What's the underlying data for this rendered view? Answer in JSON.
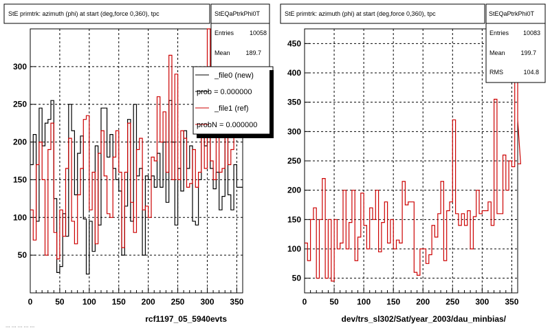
{
  "footer_text": "... ... ... ... ...",
  "chart_data": [
    {
      "type": "line",
      "title": "StE primtrk: azimuth (phi) at start (deg,force 0,360), tpc",
      "xlabel": "rcf1197_05_5940evts",
      "ylabel": "",
      "xlim": [
        0,
        360
      ],
      "ylim": [
        0,
        350
      ],
      "grid": true,
      "x_ticks": [
        0,
        50,
        100,
        150,
        200,
        250,
        300,
        350
      ],
      "y_ticks": [
        50,
        100,
        150,
        200,
        250,
        300
      ],
      "stats": {
        "name": "StEQaPtrkPhi0T",
        "entries_label": "Entries",
        "entries": "10058",
        "mean_label": "Mean",
        "mean": "189.7"
      },
      "legend": {
        "placement": "top-right",
        "entries": [
          {
            "label": "_file0 (new)",
            "color": "#000000"
          },
          {
            "label": "prob = 0.000000",
            "color": "#000000"
          },
          {
            "label": "_file1 (ref)",
            "color": "#cc0000"
          },
          {
            "label": "probN = 0.000000",
            "color": "#cc0000"
          }
        ]
      },
      "series": [
        {
          "color": "#000000",
          "bin_width": 5,
          "values": [
            170,
            210,
            95,
            245,
            195,
            225,
            230,
            255,
            125,
            27,
            35,
            105,
            75,
            250,
            215,
            130,
            185,
            208,
            98,
            25,
            95,
            55,
            195,
            90,
            245,
            245,
            180,
            210,
            165,
            150,
            135,
            50,
            115,
            230,
            95,
            250,
            155,
            165,
            50,
            155,
            150,
            155,
            140,
            185,
            140,
            200,
            120,
            255,
            200,
            90,
            165,
            135,
            215,
            165,
            195,
            95,
            90,
            150,
            275,
            195,
            250,
            165,
            138,
            160,
            110,
            128,
            215,
            130,
            110,
            170,
            140,
            140
          ]
        },
        {
          "color": "#cc0000",
          "bin_width": 5,
          "values": [
            110,
            70,
            170,
            200,
            150,
            50,
            190,
            225,
            80,
            45,
            110,
            75,
            165,
            205,
            95,
            65,
            130,
            165,
            230,
            235,
            110,
            160,
            65,
            185,
            215,
            155,
            105,
            100,
            180,
            215,
            160,
            60,
            160,
            225,
            120,
            80,
            190,
            205,
            110,
            115,
            100,
            180,
            175,
            260,
            200,
            240,
            160,
            315,
            150,
            290,
            150,
            215,
            205,
            140,
            145,
            190,
            140,
            160,
            260,
            165,
            370,
            175,
            150,
            240,
            160,
            165,
            220,
            170,
            190,
            250,
            235,
            225
          ]
        }
      ]
    },
    {
      "type": "line",
      "title": "StE primtrk: azimuth (phi) at start (deg,force 0,360), tpc",
      "xlabel": "dev/trs_sl302/Sat/year_2003/dau_minbias/",
      "ylabel": "",
      "xlim": [
        0,
        360
      ],
      "ylim": [
        25,
        475
      ],
      "grid": true,
      "x_ticks": [
        0,
        50,
        100,
        150,
        200,
        250,
        300,
        350
      ],
      "y_ticks": [
        50,
        100,
        150,
        200,
        250,
        300,
        350,
        400,
        450
      ],
      "stats": {
        "name": "StEQaPtrkPhi0T",
        "entries_label": "Entries",
        "entries": "10083",
        "mean_label": "Mean",
        "mean": "199.7",
        "rms_label": "RMS",
        "rms": "104.8"
      },
      "series": [
        {
          "color": "#cc0000",
          "bin_width": 5,
          "values": [
            110,
            80,
            150,
            170,
            50,
            150,
            220,
            50,
            150,
            45,
            150,
            100,
            110,
            200,
            100,
            145,
            200,
            80,
            120,
            195,
            140,
            100,
            170,
            150,
            200,
            95,
            145,
            180,
            110,
            150,
            100,
            115,
            110,
            215,
            175,
            180,
            180,
            60,
            55,
            100,
            100,
            75,
            90,
            140,
            120,
            160,
            215,
            80,
            165,
            180,
            320,
            160,
            140,
            160,
            140,
            165,
            100,
            155,
            200,
            160,
            165,
            165,
            180,
            140,
            355,
            160,
            160,
            260,
            200,
            250,
            240,
            405,
            320,
            245
          ]
        }
      ]
    }
  ]
}
